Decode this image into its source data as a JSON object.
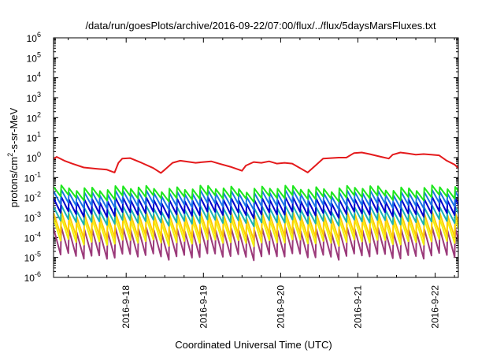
{
  "chart_data": {
    "type": "line",
    "title": "/data/run/goesPlots/archive/2016-09-22/07:00/flux/../flux/5daysMarsFluxes.txt",
    "xlabel": "Coordinated Universal Time (UTC)",
    "ylabel_main": "protons/cm",
    "ylabel_sup": "2",
    "ylabel_tail": "-s-sr-MeV",
    "yscale": "log",
    "ylim_exp": [
      -6,
      6
    ],
    "x_ticks": [
      "2016-9-18",
      "2016-9-19",
      "2016-9-20",
      "2016-9-21",
      "2016-9-22"
    ],
    "x_range_days": [
      17.06,
      22.3
    ],
    "y_tick_labels": [
      {
        "base": "10",
        "exp": "-6"
      },
      {
        "base": "10",
        "exp": "-5"
      },
      {
        "base": "10",
        "exp": "-4"
      },
      {
        "base": "10",
        "exp": "-3"
      },
      {
        "base": "10",
        "exp": "-2"
      },
      {
        "base": "10",
        "exp": "-1"
      },
      {
        "base": "10",
        "exp": "0"
      },
      {
        "base": "10",
        "exp": "1"
      },
      {
        "base": "10",
        "exp": "2"
      },
      {
        "base": "10",
        "exp": "3"
      },
      {
        "base": "10",
        "exp": "4"
      },
      {
        "base": "10",
        "exp": "5"
      },
      {
        "base": "10",
        "exp": "6"
      }
    ],
    "series": [
      {
        "color": "#e41a1c",
        "style": "smooth",
        "pattern": [
          [
            17.06,
            0.85
          ],
          [
            17.1,
            1.1
          ],
          [
            17.2,
            0.7
          ],
          [
            17.3,
            0.5
          ],
          [
            17.45,
            0.32
          ],
          [
            17.6,
            0.28
          ],
          [
            17.75,
            0.25
          ],
          [
            17.85,
            0.18
          ],
          [
            17.9,
            0.55
          ],
          [
            17.95,
            0.9
          ],
          [
            18.05,
            0.95
          ],
          [
            18.2,
            0.55
          ],
          [
            18.35,
            0.3
          ],
          [
            18.45,
            0.17
          ],
          [
            18.5,
            0.25
          ],
          [
            18.6,
            0.55
          ],
          [
            18.7,
            0.7
          ],
          [
            18.8,
            0.62
          ],
          [
            18.9,
            0.55
          ],
          [
            19.0,
            0.6
          ],
          [
            19.1,
            0.65
          ],
          [
            19.2,
            0.5
          ],
          [
            19.35,
            0.35
          ],
          [
            19.5,
            0.22
          ],
          [
            19.55,
            0.4
          ],
          [
            19.65,
            0.6
          ],
          [
            19.75,
            0.55
          ],
          [
            19.85,
            0.65
          ],
          [
            19.95,
            0.5
          ],
          [
            20.05,
            0.55
          ],
          [
            20.15,
            0.5
          ],
          [
            20.25,
            0.3
          ],
          [
            20.35,
            0.18
          ],
          [
            20.45,
            0.4
          ],
          [
            20.55,
            0.9
          ],
          [
            20.65,
            0.95
          ],
          [
            20.75,
            1.0
          ],
          [
            20.85,
            1.0
          ],
          [
            20.95,
            1.7
          ],
          [
            21.05,
            1.8
          ],
          [
            21.15,
            1.5
          ],
          [
            21.3,
            1.1
          ],
          [
            21.4,
            0.9
          ],
          [
            21.45,
            1.4
          ],
          [
            21.55,
            1.8
          ],
          [
            21.65,
            1.6
          ],
          [
            21.75,
            1.4
          ],
          [
            21.85,
            1.5
          ],
          [
            21.95,
            1.4
          ],
          [
            22.05,
            1.3
          ],
          [
            22.15,
            0.7
          ],
          [
            22.25,
            0.45
          ],
          [
            22.3,
            0.3
          ]
        ]
      },
      {
        "color": "#1ee61e",
        "style": "saw",
        "period": 0.1,
        "top": 0.03,
        "bottom": 0.01
      },
      {
        "color": "#1a73e6",
        "style": "saw",
        "period": 0.1,
        "top": 0.018,
        "bottom": 0.004
      },
      {
        "color": "#0000cc",
        "style": "saw",
        "period": 0.1,
        "top": 0.008,
        "bottom": 0.0015
      },
      {
        "color": "#1ab2b2",
        "style": "saw",
        "period": 0.1,
        "top": 0.003,
        "bottom": 0.0006
      },
      {
        "color": "#ffcc00",
        "style": "saw",
        "period": 0.1,
        "top": 0.0015,
        "bottom": 0.00012
      },
      {
        "color": "#f2f20c",
        "style": "saw",
        "period": 0.1,
        "top": 0.0008,
        "bottom": 6e-05
      },
      {
        "color": "#9b3a7a",
        "style": "saw",
        "period": 0.1,
        "top": 0.00025,
        "bottom": 1.2e-05
      }
    ]
  }
}
